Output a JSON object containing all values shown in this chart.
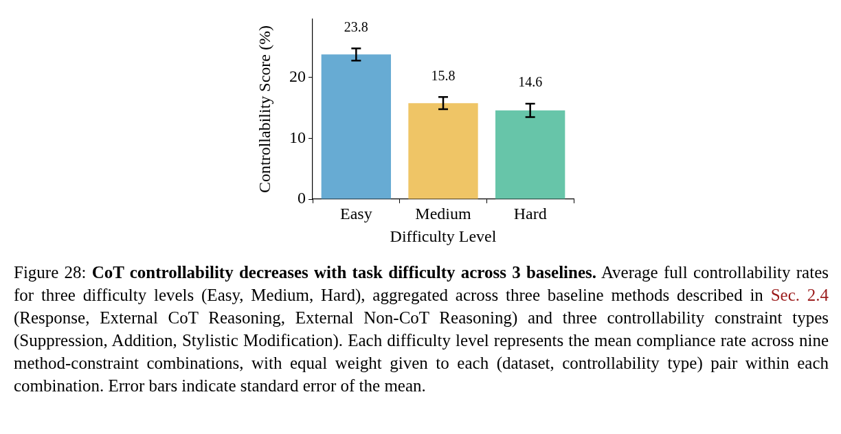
{
  "chart_data": {
    "type": "bar",
    "xlabel": "Difficulty Level",
    "ylabel": "Controllability Score (%)",
    "categories": [
      "Easy",
      "Medium",
      "Hard"
    ],
    "values": [
      23.8,
      15.8,
      14.6
    ],
    "colors": [
      "#67abd3",
      "#efc566",
      "#67c5a9"
    ],
    "errors": [
      1.0,
      1.0,
      1.1
    ],
    "ylim": [
      0,
      29.6
    ],
    "yticks": [
      0,
      10,
      20
    ],
    "data_labels": true,
    "annotations": [
      "Figure 28:",
      "CoT controllability decreases with task difficulty across 3 baselines.",
      "Average full controllability rates for three difficulty levels (Easy, Medium, Hard), aggregated across three baseline methods described in",
      "Sec. 2.4",
      "(Response, External CoT Reasoning, External Non-CoT Reasoning) and three controllability constraint types (Suppression, Addition, Stylistic Modification).  Each difficulty level represents the mean compliance rate across nine method-constraint combinations, with equal weight given to each (dataset, controllability type) pair within each combination. Error bars indicate standard error of the mean."
    ]
  }
}
